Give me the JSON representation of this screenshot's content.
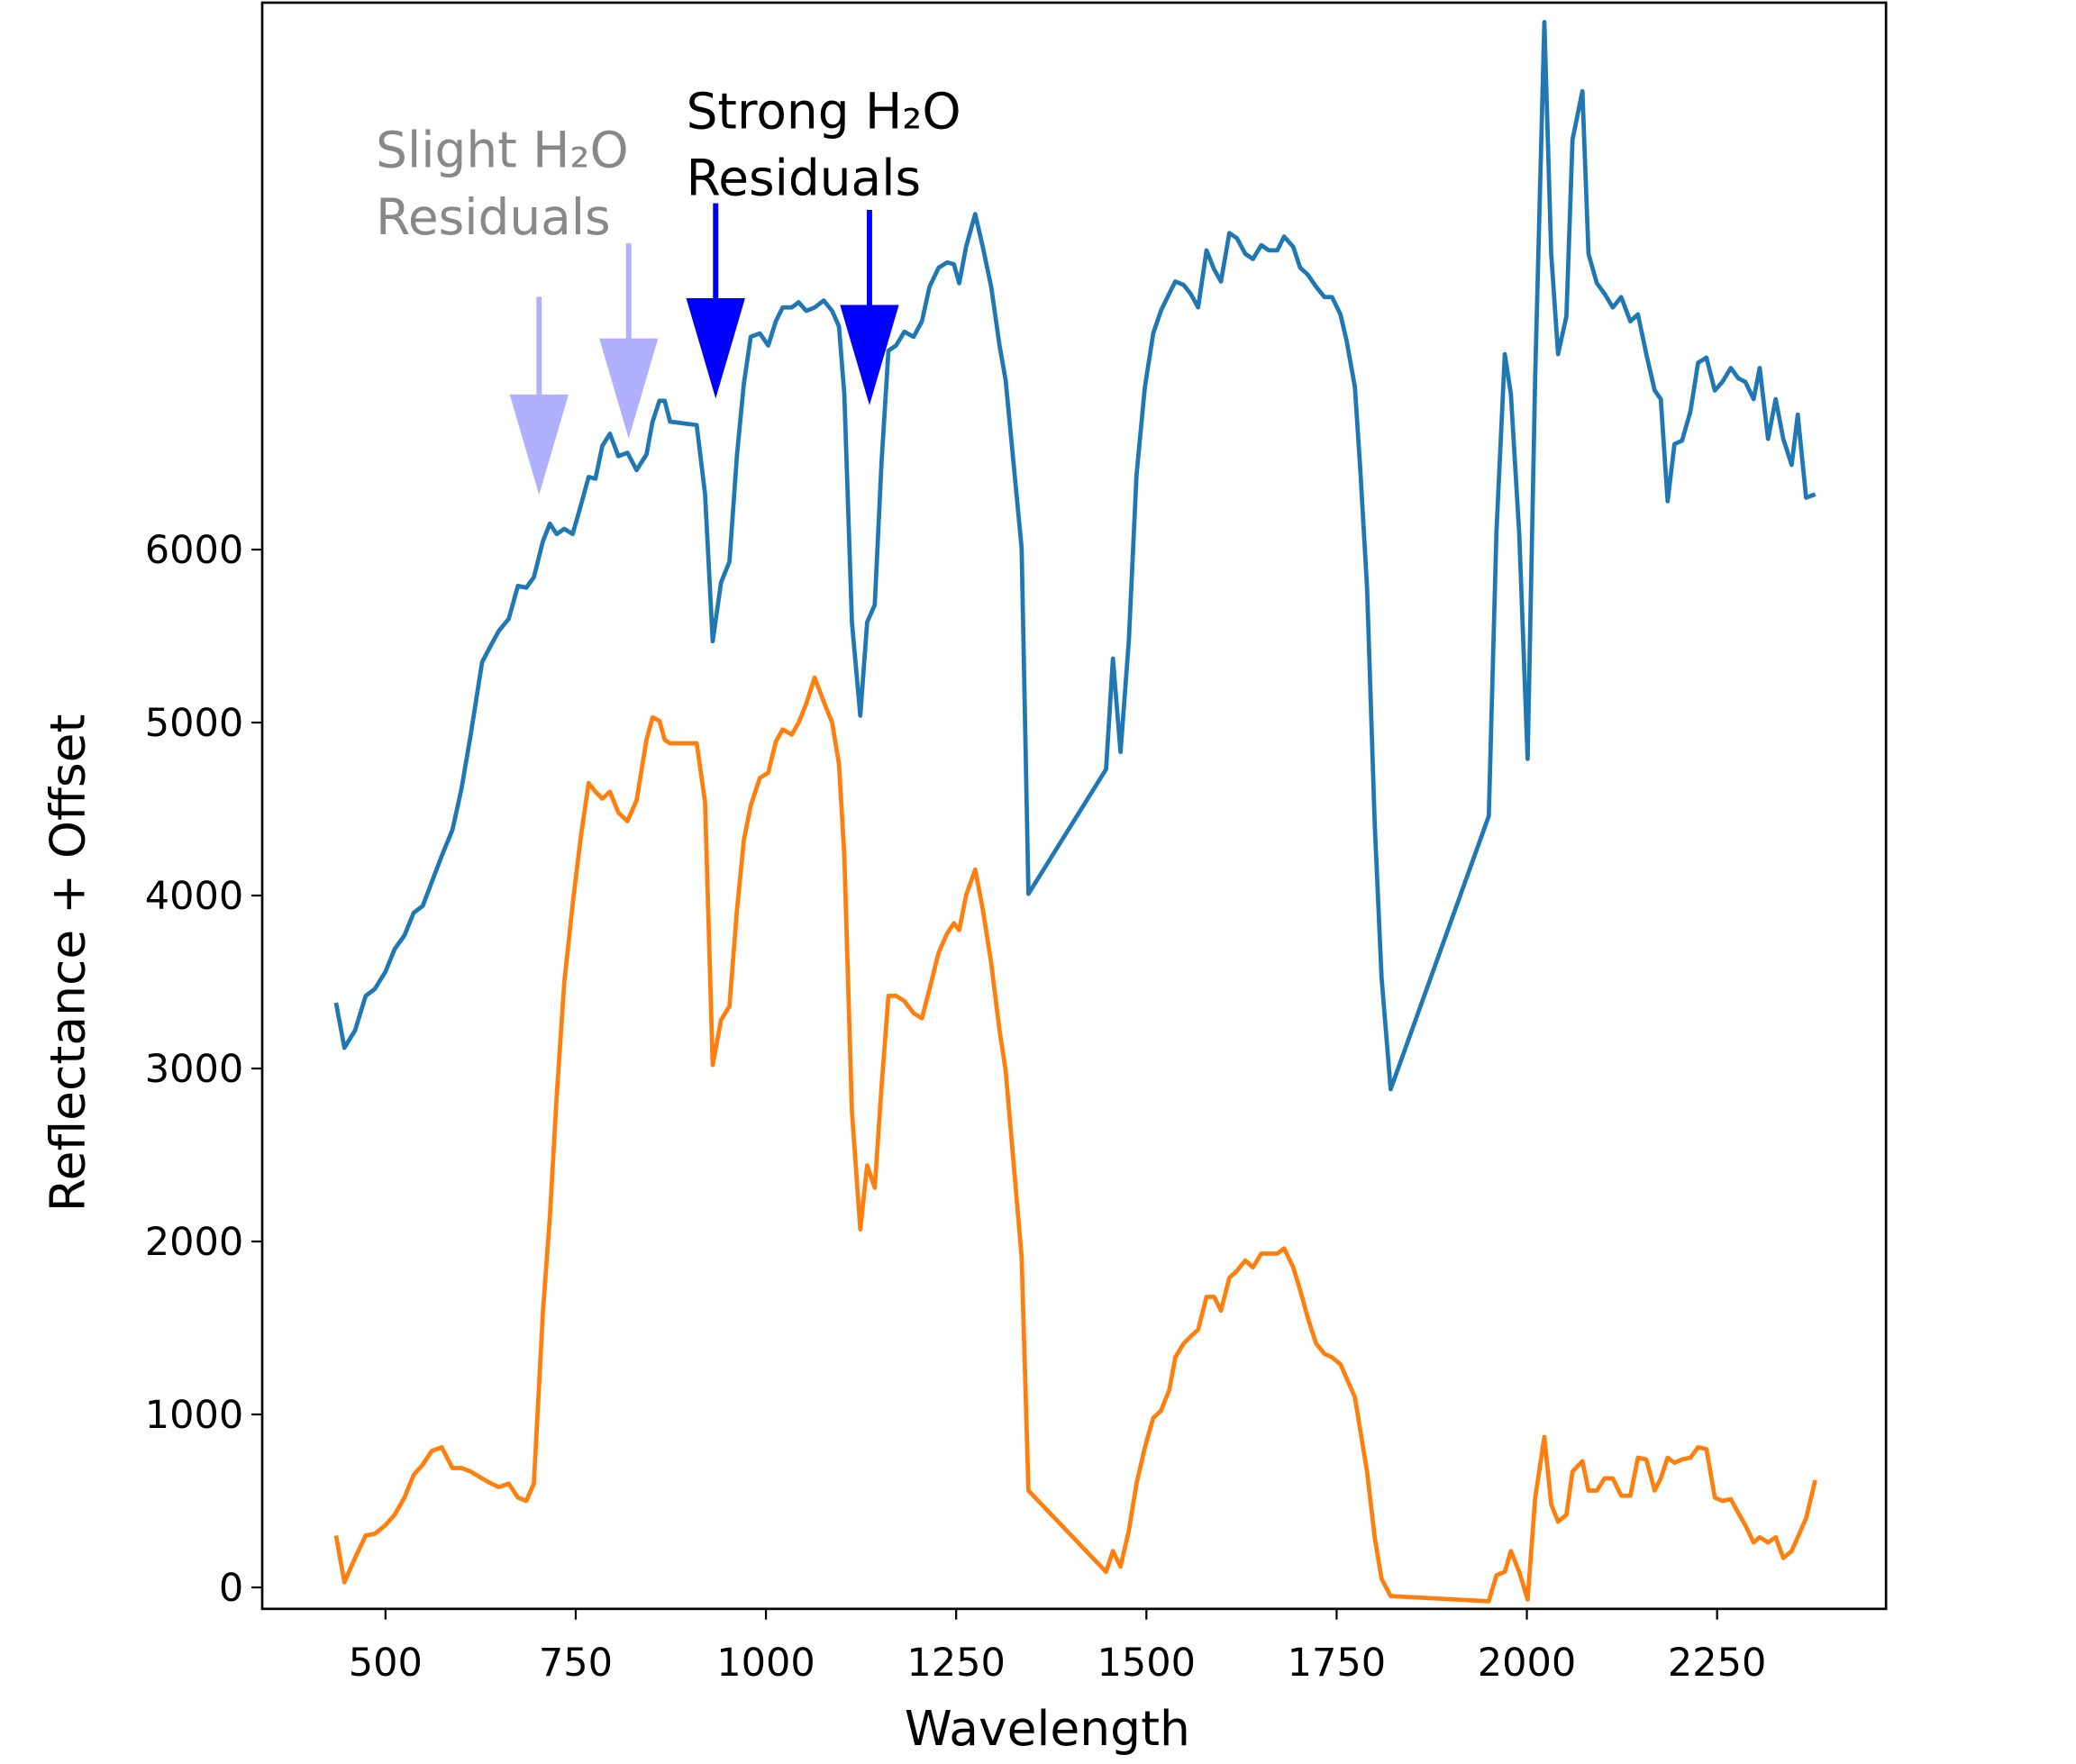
{
  "chart_data": {
    "type": "line",
    "xlabel": "Wavelength",
    "ylabel": "Reflectance + Offset",
    "x": [
      435,
      446,
      460,
      474,
      486,
      500,
      512,
      525,
      537,
      549,
      561,
      574,
      588,
      600,
      612,
      627,
      639,
      649,
      662,
      674,
      685,
      695,
      707,
      716,
      725,
      735,
      746,
      757,
      767,
      776,
      785,
      795,
      806,
      818,
      830,
      843,
      851,
      860,
      867,
      874,
      909,
      920,
      930,
      941,
      952,
      962,
      971,
      980,
      992,
      1003,
      1013,
      1022,
      1034,
      1043,
      1053,
      1064,
      1076,
      1087,
      1096,
      1103,
      1113,
      1124,
      1133,
      1143,
      1152,
      1161,
      1171,
      1182,
      1194,
      1205,
      1215,
      1227,
      1238,
      1247,
      1254,
      1263,
      1275,
      1285,
      1296,
      1307,
      1315,
      1336,
      1345,
      1447,
      1456,
      1466,
      1477,
      1487,
      1498,
      1509,
      1519,
      1530,
      1538,
      1549,
      1558,
      1568,
      1579,
      1589,
      1598,
      1609,
      1619,
      1630,
      1640,
      1651,
      1661,
      1672,
      1681,
      1693,
      1702,
      1712,
      1723,
      1734,
      1744,
      1755,
      1763,
      1774,
      1781,
      1790,
      1800,
      1809,
      1821,
      1950,
      1960,
      1971,
      1979,
      1990,
      2001,
      2011,
      2023,
      2032,
      2041,
      2052,
      2060,
      2073,
      2081,
      2092,
      2102,
      2113,
      2124,
      2136,
      2146,
      2157,
      2168,
      2176,
      2185,
      2194,
      2204,
      2215,
      2225,
      2236,
      2247,
      2257,
      2268,
      2278,
      2287,
      2298,
      2306,
      2317,
      2327,
      2337,
      2348,
      2356,
      2367,
      2379
    ],
    "series": [
      {
        "color": "#1f77b4",
        "values": [
          3380,
          3120,
          3220,
          3420,
          3460,
          3560,
          3690,
          3770,
          3900,
          3940,
          4080,
          4230,
          4380,
          4620,
          4930,
          5350,
          5450,
          5530,
          5600,
          5790,
          5780,
          5840,
          6050,
          6150,
          6090,
          6120,
          6090,
          6260,
          6420,
          6410,
          6600,
          6670,
          6540,
          6560,
          6460,
          6550,
          6740,
          6860,
          6860,
          6740,
          6720,
          6320,
          5470,
          5810,
          5930,
          6550,
          6960,
          7230,
          7250,
          7180,
          7320,
          7400,
          7400,
          7430,
          7380,
          7400,
          7440,
          7380,
          7290,
          6900,
          5580,
          5040,
          5580,
          5680,
          6510,
          7150,
          7180,
          7260,
          7230,
          7320,
          7520,
          7630,
          7660,
          7650,
          7540,
          7750,
          7940,
          7750,
          7520,
          7180,
          6980,
          6010,
          4010,
          4730,
          5370,
          4830,
          5480,
          6430,
          6940,
          7250,
          7380,
          7480,
          7550,
          7530,
          7480,
          7400,
          7730,
          7620,
          7550,
          7830,
          7800,
          7710,
          7680,
          7760,
          7730,
          7730,
          7810,
          7750,
          7630,
          7590,
          7520,
          7460,
          7460,
          7360,
          7210,
          6940,
          6470,
          5780,
          4420,
          3530,
          2880,
          4460,
          6100,
          7130,
          6900,
          6090,
          4790,
          7010,
          9050,
          7710,
          7130,
          7350,
          8370,
          8650,
          7710,
          7540,
          7480,
          7400,
          7460,
          7320,
          7360,
          7130,
          6920,
          6870,
          6280,
          6610,
          6630,
          6800,
          7080,
          7110,
          6920,
          6970,
          7050,
          6990,
          6970,
          6870,
          7050,
          6640,
          6870,
          6640,
          6490,
          6780,
          6300,
          6320
        ]
      },
      {
        "color": "#ff7f0e",
        "values": [
          300,
          30,
          170,
          300,
          310,
          360,
          420,
          520,
          650,
          710,
          790,
          810,
          690,
          690,
          670,
          630,
          600,
          580,
          600,
          520,
          500,
          600,
          1600,
          2140,
          2840,
          3500,
          3950,
          4350,
          4650,
          4600,
          4560,
          4600,
          4480,
          4430,
          4550,
          4900,
          5030,
          5010,
          4900,
          4880,
          4880,
          4540,
          3020,
          3280,
          3360,
          3920,
          4320,
          4520,
          4680,
          4710,
          4890,
          4960,
          4930,
          5000,
          5110,
          5260,
          5120,
          5000,
          4760,
          4230,
          2750,
          2070,
          2440,
          2310,
          2900,
          3420,
          3420,
          3390,
          3320,
          3290,
          3460,
          3670,
          3780,
          3840,
          3800,
          4000,
          4150,
          3920,
          3610,
          3220,
          2990,
          1910,
          560,
          90,
          210,
          120,
          330,
          600,
          810,
          980,
          1020,
          1140,
          1330,
          1410,
          1450,
          1490,
          1680,
          1680,
          1600,
          1790,
          1830,
          1890,
          1850,
          1930,
          1930,
          1930,
          1960,
          1850,
          1720,
          1560,
          1410,
          1350,
          1330,
          1290,
          1210,
          1100,
          910,
          670,
          290,
          50,
          -50,
          -80,
          70,
          90,
          210,
          90,
          -70,
          520,
          870,
          480,
          380,
          420,
          670,
          730,
          560,
          560,
          630,
          630,
          530,
          530,
          750,
          740,
          560,
          630,
          750,
          720,
          740,
          750,
          810,
          800,
          520,
          500,
          510,
          430,
          360,
          260,
          290,
          260,
          290,
          170,
          210,
          290,
          400,
          620
        ]
      }
    ],
    "xlim": [
      338,
      2472
    ],
    "ylim": [
      -124,
      9162
    ],
    "xticks": [
      500,
      750,
      1000,
      1250,
      1500,
      1750,
      2000,
      2250
    ],
    "yticks": [
      0,
      1000,
      2000,
      3000,
      4000,
      5000,
      6000
    ],
    "annotations": [
      {
        "lines": [
          "Slight H₂O",
          "Residuals"
        ],
        "color": "#888888"
      },
      {
        "lines": [
          "Strong H₂O",
          "Residuals"
        ],
        "color": "#000000"
      }
    ]
  }
}
